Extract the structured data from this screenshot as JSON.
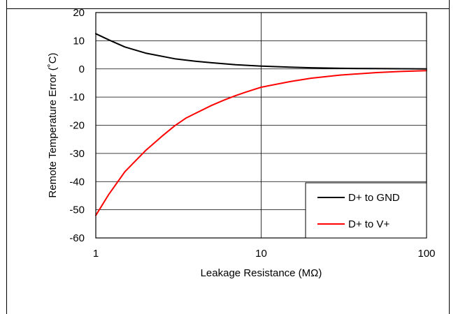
{
  "chart_data": {
    "type": "line",
    "xlabel": "Leakage Resistance (MΩ)",
    "ylabel": "Remote Temperature Error (˚C)",
    "x_scale": "log",
    "xlim": [
      1,
      100
    ],
    "ylim": [
      -60,
      20
    ],
    "x_ticks": [
      "1",
      "10",
      "100"
    ],
    "y_ticks": [
      "20",
      "10",
      "0",
      "-10",
      "-20",
      "-30",
      "-40",
      "-50",
      "-60"
    ],
    "grid": "major gridlines on both axes",
    "legend": "bottom-right",
    "series": [
      {
        "name": "D+ to GND",
        "color": "#000000",
        "x": [
          1,
          1.2,
          1.5,
          2,
          3,
          4,
          5,
          7,
          10,
          15,
          20,
          30,
          50,
          70,
          100
        ],
        "y": [
          12.5,
          10.3,
          7.8,
          5.6,
          3.6,
          2.7,
          2.2,
          1.5,
          1.0,
          0.6,
          0.4,
          0.2,
          0.1,
          0.05,
          0.0
        ]
      },
      {
        "name": "D+ to V+",
        "color": "#ff0000",
        "x": [
          1,
          1.2,
          1.5,
          2,
          2.5,
          3,
          3.5,
          4,
          5,
          6,
          7,
          8,
          10,
          15,
          20,
          30,
          50,
          70,
          100
        ],
        "y": [
          -52,
          -44.5,
          -36.5,
          -29,
          -24,
          -20.2,
          -17.5,
          -15.8,
          -13,
          -11,
          -9.5,
          -8.3,
          -6.5,
          -4.5,
          -3.3,
          -2.2,
          -1.3,
          -0.9,
          -0.6
        ]
      }
    ]
  }
}
